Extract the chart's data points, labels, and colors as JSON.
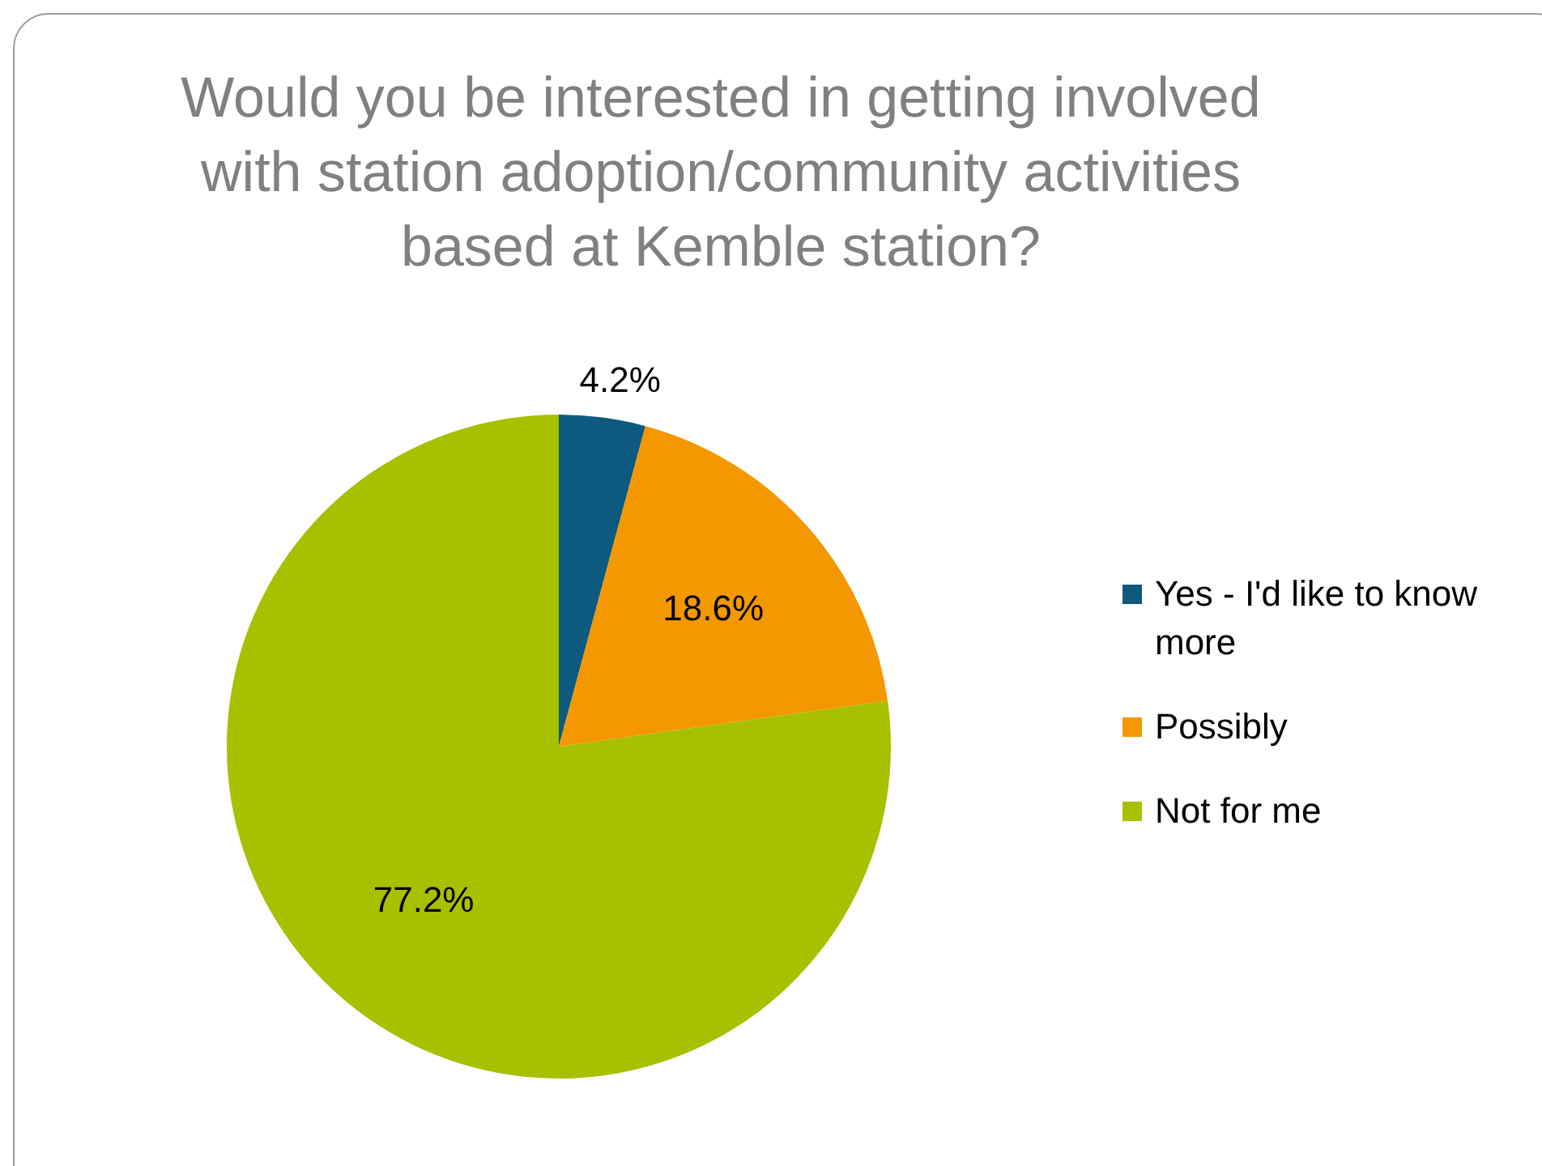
{
  "chart_data": {
    "type": "pie",
    "title": "Would you be interested in getting involved with station adoption/community activities based at Kemble station?",
    "categories": [
      "Yes - I'd like to know more",
      "Possibly",
      "Not for me"
    ],
    "values": [
      4.2,
      18.6,
      77.2
    ],
    "colors": [
      "#0e5a7e",
      "#f39800",
      "#a7c000"
    ],
    "value_labels": [
      "4.2%",
      "18.6%",
      "77.2%"
    ],
    "legend": "right"
  }
}
